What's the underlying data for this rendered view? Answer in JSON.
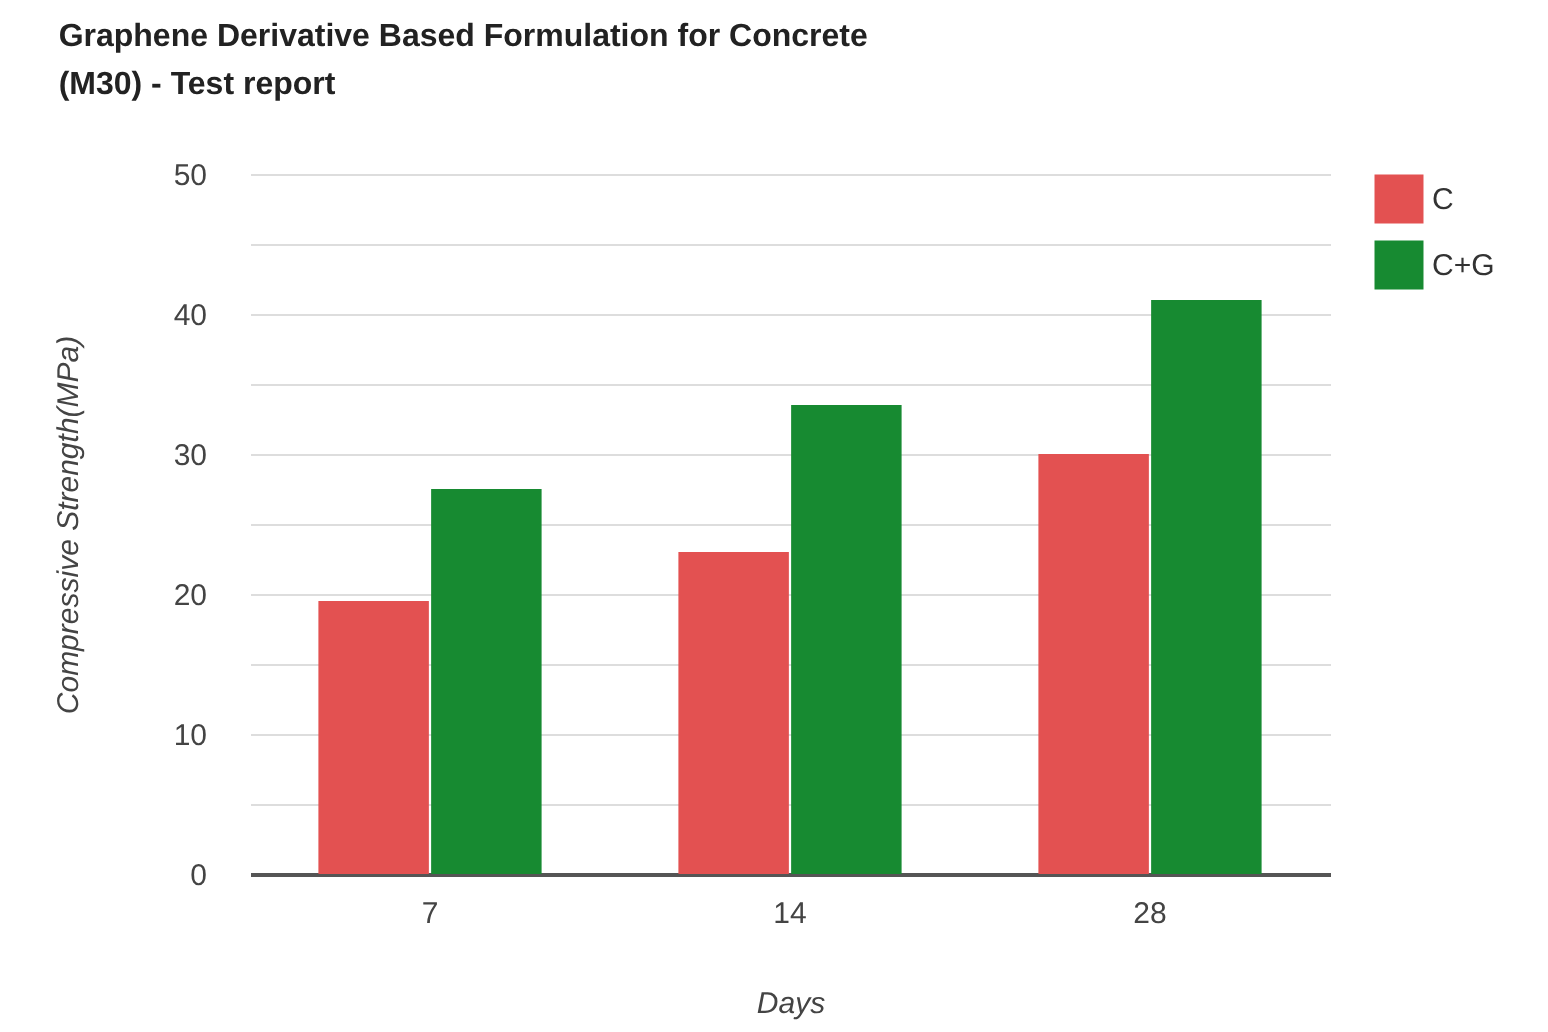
{
  "chart_data": {
    "type": "bar",
    "title": "Graphene Derivative Based Formulation for Concrete (M30) - Test report",
    "xlabel": "Days",
    "ylabel": "Compressive Strength(MPa)",
    "categories": [
      "7",
      "14",
      "28"
    ],
    "series": [
      {
        "name": "C",
        "color": "#e35151",
        "values": [
          19.5,
          23,
          30
        ]
      },
      {
        "name": "C+G",
        "color": "#178a31",
        "values": [
          27.5,
          33.5,
          41
        ]
      }
    ],
    "ylim": [
      0,
      50
    ],
    "yticks": [
      0,
      {
        "value": 5,
        "label": null
      },
      10,
      {
        "value": 15,
        "label": null
      },
      20,
      {
        "value": 25,
        "label": null
      },
      30,
      {
        "value": 35,
        "label": null
      },
      40,
      {
        "value": 45,
        "label": null
      },
      50
    ],
    "grid": "y",
    "legend": "top right"
  }
}
